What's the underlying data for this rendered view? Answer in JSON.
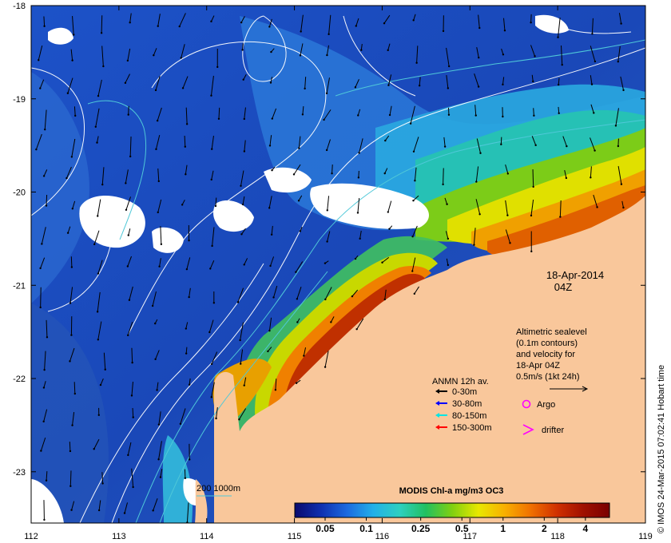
{
  "map": {
    "date": "18-Apr-2014",
    "time": "04Z",
    "lon_ticks": [
      "112",
      "113",
      "114",
      "115",
      "116",
      "117",
      "118",
      "119"
    ],
    "lat_ticks": [
      "-18",
      "-19",
      "-20",
      "-21",
      "-22",
      "-23"
    ],
    "lon_range": [
      112,
      119
    ],
    "lat_range": [
      -23.55,
      -18
    ],
    "credit": "© IMOS 24-Mar-2015 07:02:41 Hobart time",
    "colors": {
      "land": "#f9c79b",
      "cloud": "#ffffff",
      "deep_ocean": "#1840a8"
    }
  },
  "altimetry": {
    "lines": [
      "Altimetric sealevel",
      "(0.1m contours)",
      "and velocity for",
      "18-Apr 04Z",
      "0.5m/s (1kt 24h)"
    ]
  },
  "anmn": {
    "title": "ANMN 12h av.",
    "items": [
      {
        "label": "0-30m",
        "color": "#000000"
      },
      {
        "label": "30-80m",
        "color": "#0000ff"
      },
      {
        "label": "80-150m",
        "color": "#00e5e5"
      },
      {
        "label": "150-300m",
        "color": "#ff0000"
      }
    ]
  },
  "markers": {
    "argo": {
      "label": "Argo",
      "color": "#ff00ff"
    },
    "drifter": {
      "label": "drifter",
      "color": "#ff00ff"
    }
  },
  "isobath": {
    "label": "200  1000m",
    "color": "#4fc8d8"
  },
  "colorbar": {
    "title": "MODIS Chl-a mg/m3 OC3",
    "ticks": [
      "0.05",
      "0.1",
      "0.25",
      "0.5",
      "1",
      "2",
      "4"
    ],
    "values": [
      0.05,
      0.1,
      0.25,
      0.5,
      1,
      2,
      4
    ],
    "range": [
      0.03,
      6
    ],
    "colors": [
      "#0a0a6e",
      "#1030b0",
      "#1c6ae0",
      "#23b0e8",
      "#2ed0c0",
      "#22c060",
      "#80d010",
      "#e8e800",
      "#f8b000",
      "#f07000",
      "#d03000",
      "#a01000",
      "#7a0000"
    ]
  }
}
